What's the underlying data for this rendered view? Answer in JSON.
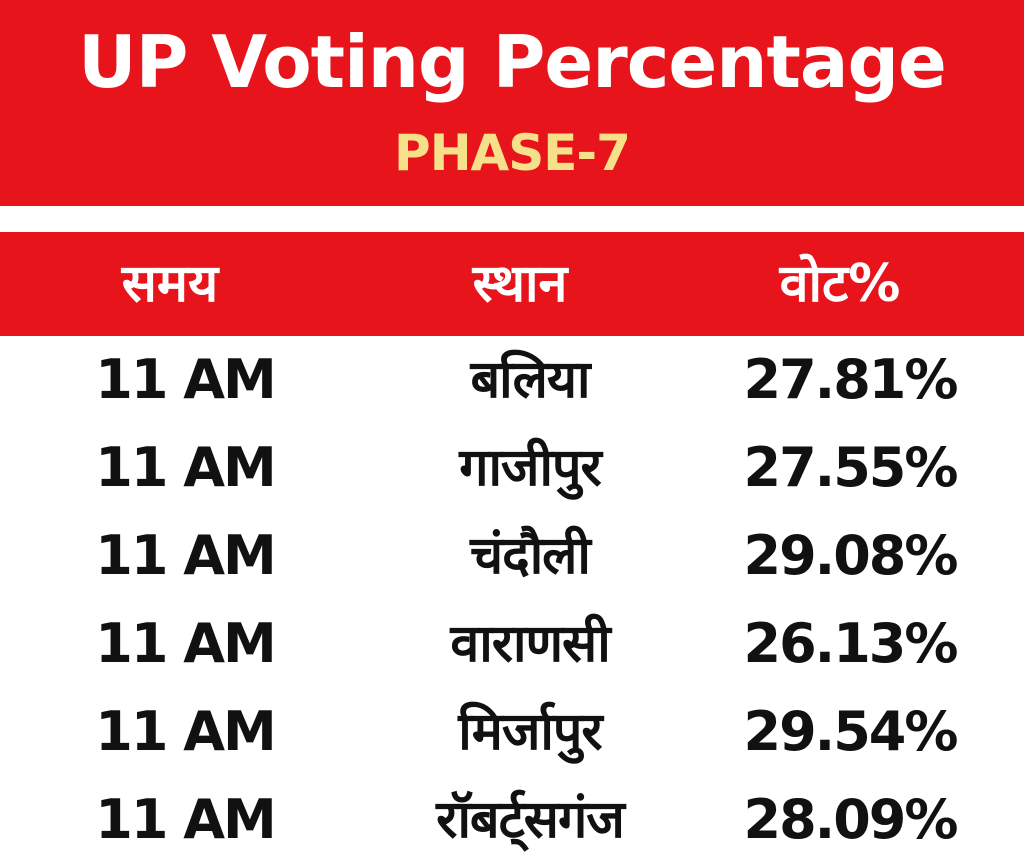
{
  "title": "UP Voting Percentage",
  "subtitle": "PHASE-7",
  "colors": {
    "banner": "#e8141c",
    "title_text": "#ffffff",
    "subtitle_text": "#f7e08a",
    "body_text": "#111111"
  },
  "table": {
    "headers": [
      "समय",
      "स्थान",
      "वोट%"
    ],
    "rows": [
      [
        "11 AM",
        "बलिया",
        "27.81%"
      ],
      [
        "11 AM",
        "गाजीपुर",
        "27.55%"
      ],
      [
        "11 AM",
        "चंदौली",
        "29.08%"
      ],
      [
        "11 AM",
        "वाराणसी",
        "26.13%"
      ],
      [
        "11 AM",
        "मिर्जापुर",
        "29.54%"
      ],
      [
        "11 AM",
        "रॉबर्ट्सगंज",
        "28.09%"
      ]
    ]
  },
  "chart_data": {
    "type": "table",
    "title": "UP Voting Percentage",
    "subtitle": "PHASE-7",
    "columns": [
      "समय",
      "स्थान",
      "वोट%"
    ],
    "rows": [
      {
        "time": "11 AM",
        "place": "बलिया",
        "vote_percent": 27.81
      },
      {
        "time": "11 AM",
        "place": "गाजीपुर",
        "vote_percent": 27.55
      },
      {
        "time": "11 AM",
        "place": "चंदौली",
        "vote_percent": 29.08
      },
      {
        "time": "11 AM",
        "place": "वाराणसी",
        "vote_percent": 26.13
      },
      {
        "time": "11 AM",
        "place": "मिर्जापुर",
        "vote_percent": 29.54
      },
      {
        "time": "11 AM",
        "place": "रॉबर्ट्सगंज",
        "vote_percent": 28.09
      }
    ]
  }
}
